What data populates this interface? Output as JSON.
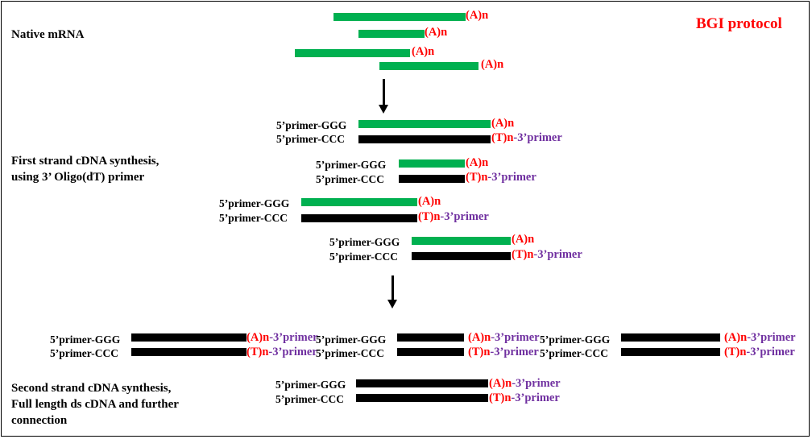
{
  "title": "BGI protocol",
  "sections": {
    "native": "Native mRNA",
    "first_line1": "First strand cDNA synthesis,",
    "first_line2": "using 3’ Oligo(dT)  primer",
    "second_line1": "Second strand cDNA synthesis,",
    "second_line2": "Full length ds cDNA and further",
    "second_line3": "connection"
  },
  "labels": {
    "an": "(A)n",
    "tn": "(T)n",
    "primer_3": "-3’primer",
    "ggg": "5’primer-GGG",
    "ccc": "5’primer-CCC"
  },
  "colors": {
    "mrna": "#00b050",
    "cdna": "#000000",
    "polya": "#ff0000",
    "primer": "#7030a0",
    "title": "#ff0000"
  }
}
